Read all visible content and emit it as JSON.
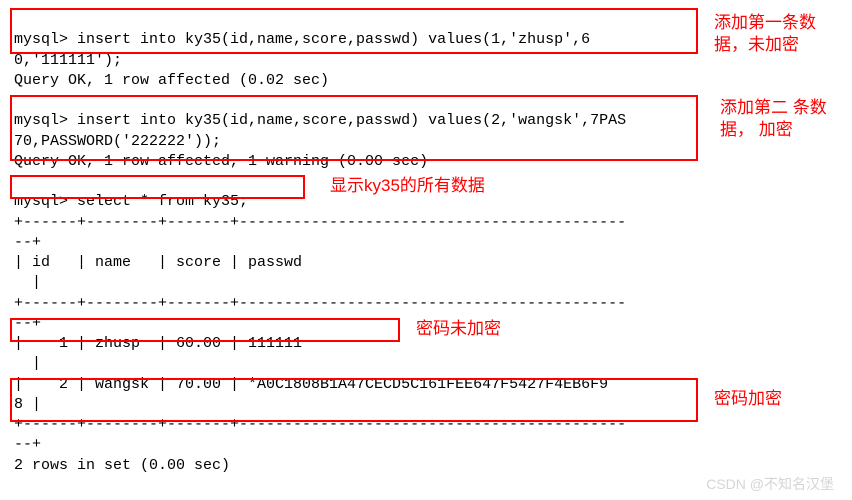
{
  "terminal": {
    "lines": [
      "mysql> insert into ky35(id,name,score,passwd) values(1,'zhusp',6",
      "0,'111111');",
      "Query OK, 1 row affected (0.02 sec)",
      "",
      "mysql> insert into ky35(id,name,score,passwd) values(2,'wangsk',7PAS",
      "70,PASSWORD('222222'));",
      "Query OK, 1 row affected, 1 warning (0.00 sec)",
      "",
      "mysql> select * from ky35;",
      "+------+--------+-------+-------------------------------------------",
      "--+",
      "| id   | name   | score | passwd",
      "  |",
      "+------+--------+-------+-------------------------------------------",
      "--+",
      "|    1 | zhusp  | 60.00 | 111111",
      "  |",
      "|    2 | wangsk | 70.00 | *A0C1808B1A47CECD5C161FEE647F5427F4EB6F9",
      "8 |",
      "+------+--------+-------+-------------------------------------------",
      "--+",
      "2 rows in set (0.00 sec)"
    ]
  },
  "annotations": {
    "a1": "添加第一条数\n据，未加密",
    "a2": "添加第二\n条数据，\n加密",
    "a3": "显示ky35的所有数据",
    "a4": "密码未加密",
    "a5": "密码加密"
  },
  "boxes": {
    "color": "#ff0000"
  },
  "watermark": "CSDN @不知名汉堡",
  "colors": {
    "text": "#000000",
    "annotation": "#ff0000",
    "background": "#ffffff",
    "watermark": "#c8c8c8"
  }
}
